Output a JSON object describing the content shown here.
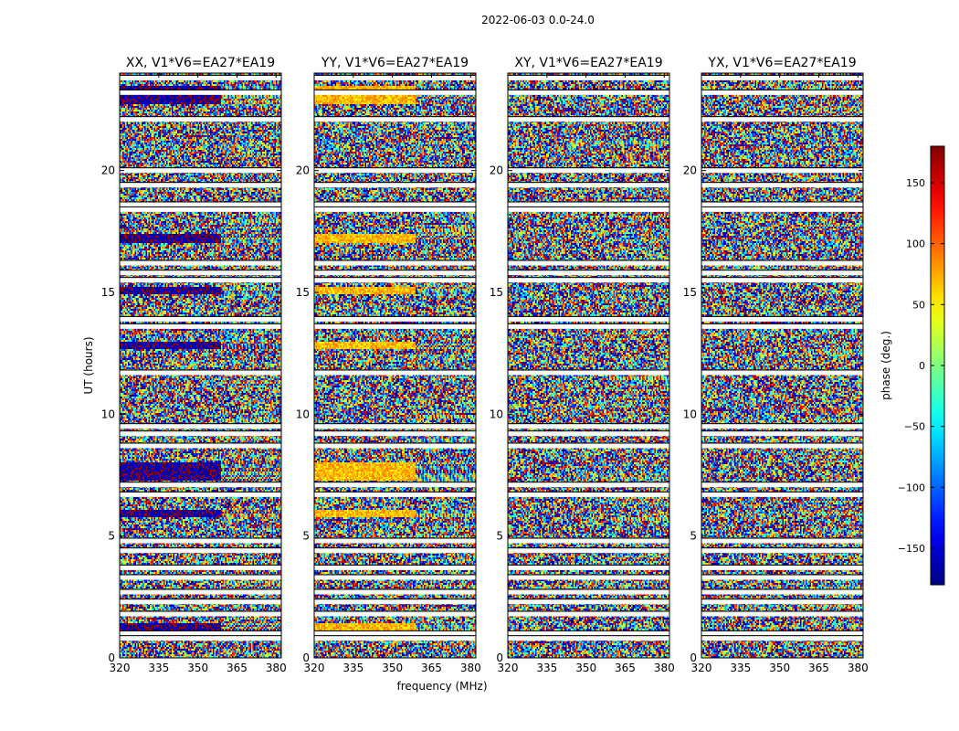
{
  "chart_data": {
    "type": "heatmap",
    "title": "2022-06-03 0.0-24.0",
    "xlabel": "frequency (MHz)",
    "ylabel": "UT (hours)",
    "xlim": [
      320,
      382
    ],
    "ylim": [
      0,
      24
    ],
    "xticks": [
      "320",
      "335",
      "350",
      "365",
      "380"
    ],
    "xtick_values": [
      320,
      335,
      350,
      365,
      380
    ],
    "yticks": [
      "0",
      "5",
      "10",
      "15",
      "20"
    ],
    "ytick_values": [
      0,
      5,
      10,
      15,
      20
    ],
    "colorbar": {
      "label": "phase (deg.)",
      "range": [
        -180,
        180
      ],
      "ticks": [
        "150",
        "100",
        "50",
        "0",
        "−50",
        "−100",
        "−150"
      ],
      "tick_values": [
        150,
        100,
        50,
        0,
        -50,
        -100,
        -150
      ],
      "colormap": "jet"
    },
    "panels": [
      {
        "title": "XX, V1*V6=EA27*EA19",
        "coherent_phase": -170,
        "coherent_bands_hours": [
          [
            22.7,
            23.5
          ],
          [
            17.0,
            17.4
          ],
          [
            14.9,
            15.2
          ],
          [
            12.7,
            13.0
          ],
          [
            7.3,
            8.0
          ],
          [
            5.8,
            6.1
          ],
          [
            1.1,
            1.4
          ]
        ]
      },
      {
        "title": "YY, V1*V6=EA27*EA19",
        "coherent_phase": 70,
        "coherent_bands_hours": [
          [
            22.7,
            23.5
          ],
          [
            17.0,
            17.4
          ],
          [
            14.9,
            15.2
          ],
          [
            12.7,
            13.0
          ],
          [
            7.3,
            8.0
          ],
          [
            5.8,
            6.1
          ],
          [
            1.1,
            1.4
          ]
        ]
      },
      {
        "title": "XY, V1*V6=EA27*EA19",
        "coherent_phase": null,
        "coherent_bands_hours": []
      },
      {
        "title": "YX, V1*V6=EA27*EA19",
        "coherent_phase": null,
        "coherent_bands_hours": []
      }
    ],
    "flagged_rows_hours": [
      23.8,
      23.2,
      22.1,
      20.0,
      19.4,
      18.6,
      18.4,
      16.2,
      15.8,
      15.5,
      13.9,
      13.6,
      11.7,
      9.5,
      9.2,
      8.7,
      7.1,
      6.7,
      4.8,
      4.4,
      3.7,
      3.3,
      2.7,
      2.3,
      1.8,
      1.0,
      0.8
    ]
  }
}
